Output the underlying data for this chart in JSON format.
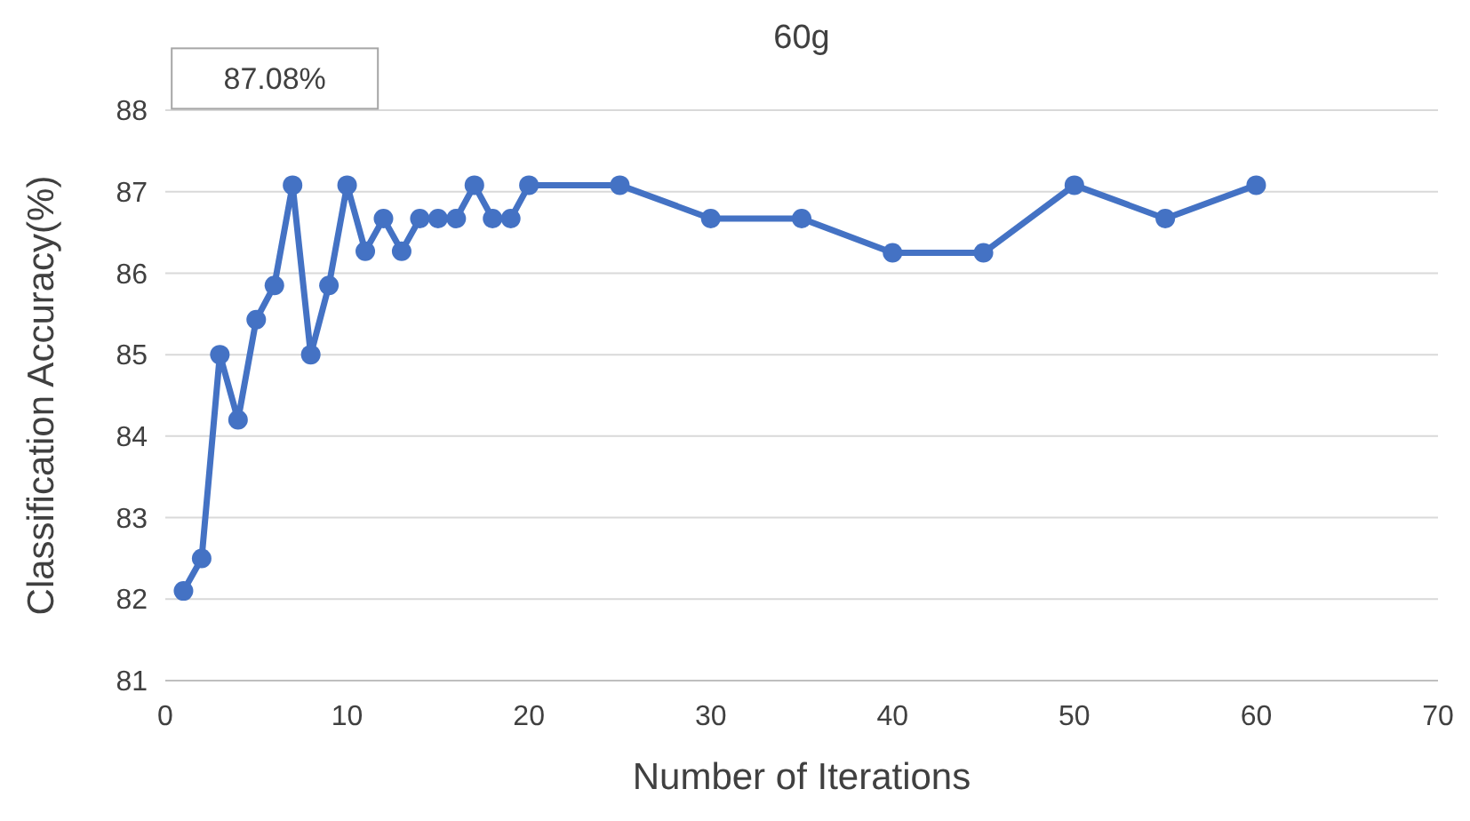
{
  "chart_data": {
    "type": "line",
    "title": "60g",
    "xlabel": "Number of Iterations",
    "ylabel": "Classification Accuracy(%)",
    "x": [
      1,
      2,
      3,
      4,
      5,
      6,
      7,
      8,
      9,
      10,
      11,
      12,
      13,
      14,
      15,
      16,
      17,
      18,
      19,
      20,
      25,
      30,
      35,
      40,
      45,
      50,
      55,
      60
    ],
    "series": [
      {
        "color": "#4472c4",
        "values": [
          82.1,
          82.5,
          85.0,
          84.2,
          85.43,
          85.85,
          87.08,
          85.0,
          85.85,
          87.08,
          86.27,
          86.67,
          86.27,
          86.67,
          86.67,
          86.67,
          87.08,
          86.67,
          86.67,
          87.08,
          87.08,
          86.67,
          86.67,
          86.25,
          86.25,
          87.08,
          86.67,
          87.08
        ]
      }
    ],
    "xlim": [
      0,
      70
    ],
    "xticks": [
      0,
      10,
      20,
      30,
      40,
      50,
      60,
      70
    ],
    "ylim": [
      81,
      88
    ],
    "yticks": [
      81,
      82,
      83,
      84,
      85,
      86,
      87,
      88
    ],
    "grid": "y",
    "marker": "circle",
    "line_style": "solid",
    "annotations": [
      {
        "text": "87.08%",
        "x": 7,
        "y": 87.08
      }
    ]
  }
}
